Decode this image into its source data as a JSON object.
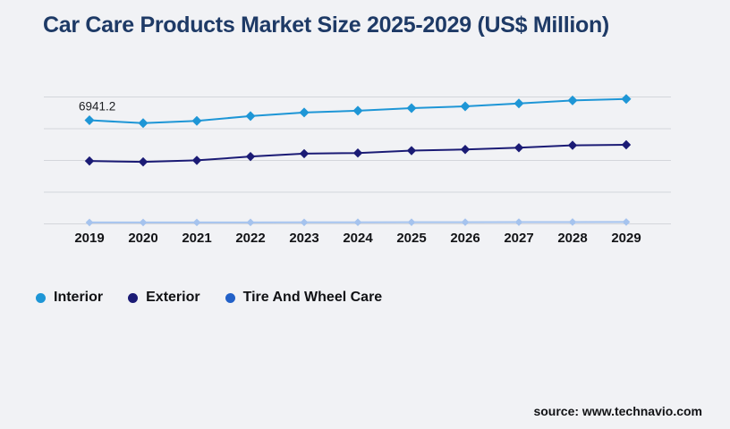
{
  "page": {
    "title": "Car Care Products Market Size 2025-2029 (US$ Million)",
    "title_color": "#1e3a66",
    "background_color": "#f1f2f5",
    "source_label": "source: www.technavio.com"
  },
  "chart_data": {
    "type": "line",
    "title": "Car Care Products Market Size 2025-2029 (US$ Million)",
    "categories": [
      "2019",
      "2020",
      "2021",
      "2022",
      "2023",
      "2024",
      "2025",
      "2026",
      "2027",
      "2028",
      "2029"
    ],
    "series": [
      {
        "name": "Interior",
        "color": "#1e96d6",
        "legend_color": "#1e96d6",
        "marker": "diamond",
        "marker_radius": 5.5,
        "values": [
          6941.2,
          6746,
          6900,
          7221,
          7458,
          7576,
          7755,
          7873,
          8069,
          8265,
          8366
        ]
      },
      {
        "name": "Exterior",
        "color": "#1b1b75",
        "legend_color": "#1b1b75",
        "marker": "diamond",
        "marker_radius": 5.2,
        "values": [
          4212,
          4153,
          4254,
          4509,
          4705,
          4746,
          4907,
          4984,
          5102,
          5263,
          5298
        ]
      },
      {
        "name": "Tire And Wheel Care",
        "color": "#a5c3ee",
        "legend_color": "#2261c8",
        "marker": "diamond",
        "marker_radius": 4.3,
        "values": [
          95,
          95,
          98,
          100,
          103,
          106,
          110,
          113,
          117,
          121,
          125
        ]
      }
    ],
    "first_point_label": "6941.2",
    "xlabel": "",
    "ylabel": "",
    "ylim": [
      0,
      8500
    ],
    "gridline_count": 5,
    "grid": true,
    "y_axis_labels_visible": false,
    "legend_position": "bottom-left",
    "gridline_color": "#d4d6db",
    "note": "Only the first Interior data point is labeled in the chart (6941.2); all other values are estimated from point positions against the gridlines."
  }
}
